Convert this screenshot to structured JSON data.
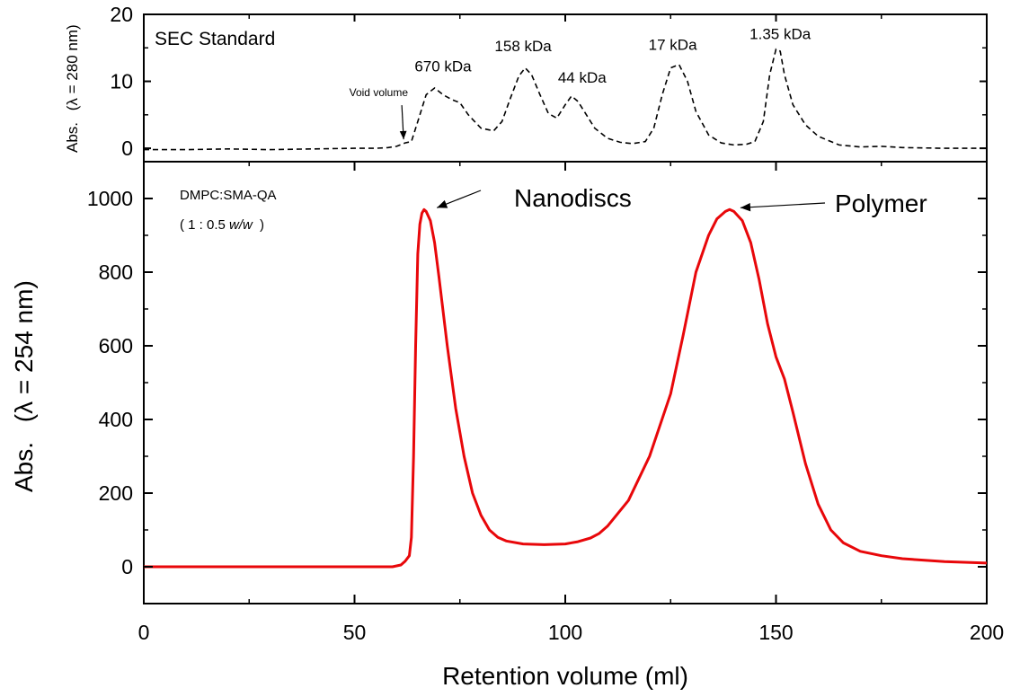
{
  "chart_data": [
    {
      "type": "line",
      "panel": "top",
      "title": "SEC Standard",
      "ylabel_prefix": "Abs.",
      "ylabel_wavelength": "(λ = 280 nm)",
      "xlim": [
        0,
        200
      ],
      "ylim": [
        -2,
        20
      ],
      "yticks": [
        0,
        10,
        20
      ],
      "grid": false,
      "line_style": "dashed",
      "color": "#000000",
      "series": [
        {
          "x": [
            0,
            10,
            20,
            30,
            40,
            50,
            55,
            58,
            60,
            62,
            63.5,
            65,
            67,
            69,
            71,
            73,
            75,
            77,
            80,
            83,
            85,
            87,
            89,
            90.5,
            92,
            94,
            96,
            98,
            100,
            101.5,
            103,
            105,
            107,
            110,
            113,
            116,
            119,
            121,
            123,
            125,
            127,
            129,
            131,
            134,
            137,
            140,
            143,
            145,
            147,
            148.5,
            150,
            151,
            152,
            154,
            157,
            160,
            165,
            170,
            175,
            180,
            190,
            200
          ],
          "y": [
            -0.2,
            -0.2,
            -0.1,
            -0.2,
            -0.1,
            0,
            0,
            0.1,
            0.3,
            0.8,
            1.0,
            4.0,
            8.0,
            9.0,
            8.0,
            7.3,
            6.8,
            5.0,
            3.0,
            2.6,
            4.0,
            7.5,
            10.8,
            12.0,
            11.0,
            8.0,
            5.2,
            4.5,
            6.5,
            7.8,
            7.0,
            5.0,
            3.0,
            1.5,
            0.9,
            0.7,
            1.0,
            3.0,
            8.0,
            12.0,
            12.5,
            10.0,
            5.5,
            2.0,
            0.8,
            0.5,
            0.6,
            1.0,
            4.0,
            11.0,
            14.8,
            14.5,
            11.0,
            6.5,
            3.5,
            1.8,
            0.5,
            0.2,
            0.3,
            0.1,
            0,
            0
          ]
        }
      ],
      "annotations": [
        {
          "text": "Void volume",
          "x": 62.5,
          "y": 0.8,
          "kind": "arrow-label"
        },
        {
          "text": "670 kDa",
          "x": 71,
          "y": 11.5
        },
        {
          "text": "158 kDa",
          "x": 90,
          "y": 14.5
        },
        {
          "text": "44 kDa",
          "x": 104,
          "y": 9.8
        },
        {
          "text": "17 kDa",
          "x": 125.5,
          "y": 14.7
        },
        {
          "text": "1.35 kDa",
          "x": 151,
          "y": 16.3
        }
      ]
    },
    {
      "type": "line",
      "panel": "main",
      "title": "",
      "sample_label": "DMPC:SMA-QA",
      "ratio_label_prefix": "( 1 : 0.5 ",
      "ratio_label_unit": "w/w",
      "ratio_label_suffix": ")",
      "xlabel": "Retention volume (ml)",
      "ylabel_prefix": "Abs.",
      "ylabel_wavelength": "(λ = 254 nm)",
      "xlim": [
        0,
        200
      ],
      "ylim": [
        -100,
        1100
      ],
      "xticks": [
        0,
        50,
        100,
        150,
        200
      ],
      "yticks": [
        0,
        200,
        400,
        600,
        800,
        1000
      ],
      "grid": false,
      "line_style": "solid",
      "color": "#e8070a",
      "series": [
        {
          "x": [
            0,
            20,
            40,
            55,
            59,
            61,
            62,
            63,
            63.5,
            64,
            64.5,
            65,
            65.5,
            66,
            66.5,
            67,
            68,
            69,
            70,
            72,
            74,
            76,
            78,
            80,
            82,
            84,
            86,
            90,
            95,
            100,
            103,
            106,
            108,
            110,
            115,
            120,
            125,
            128,
            131,
            134,
            136,
            138,
            139,
            140,
            142,
            144,
            146,
            148,
            150,
            152,
            154,
            157,
            160,
            163,
            166,
            170,
            175,
            180,
            190,
            200
          ],
          "y": [
            0,
            0,
            0,
            0,
            0,
            5,
            15,
            30,
            80,
            300,
            600,
            850,
            930,
            960,
            970,
            965,
            940,
            880,
            790,
            600,
            430,
            300,
            200,
            140,
            100,
            80,
            70,
            62,
            60,
            62,
            68,
            78,
            90,
            110,
            180,
            300,
            470,
            630,
            800,
            900,
            945,
            965,
            970,
            965,
            940,
            880,
            780,
            660,
            570,
            510,
            420,
            280,
            170,
            100,
            65,
            42,
            30,
            22,
            14,
            10
          ]
        }
      ],
      "annotations": [
        {
          "text": "Nanodiscs",
          "x": 67,
          "y": 970,
          "kind": "arrow-label"
        },
        {
          "text": "Polymer",
          "x": 139,
          "y": 970,
          "kind": "arrow-label"
        }
      ]
    }
  ]
}
